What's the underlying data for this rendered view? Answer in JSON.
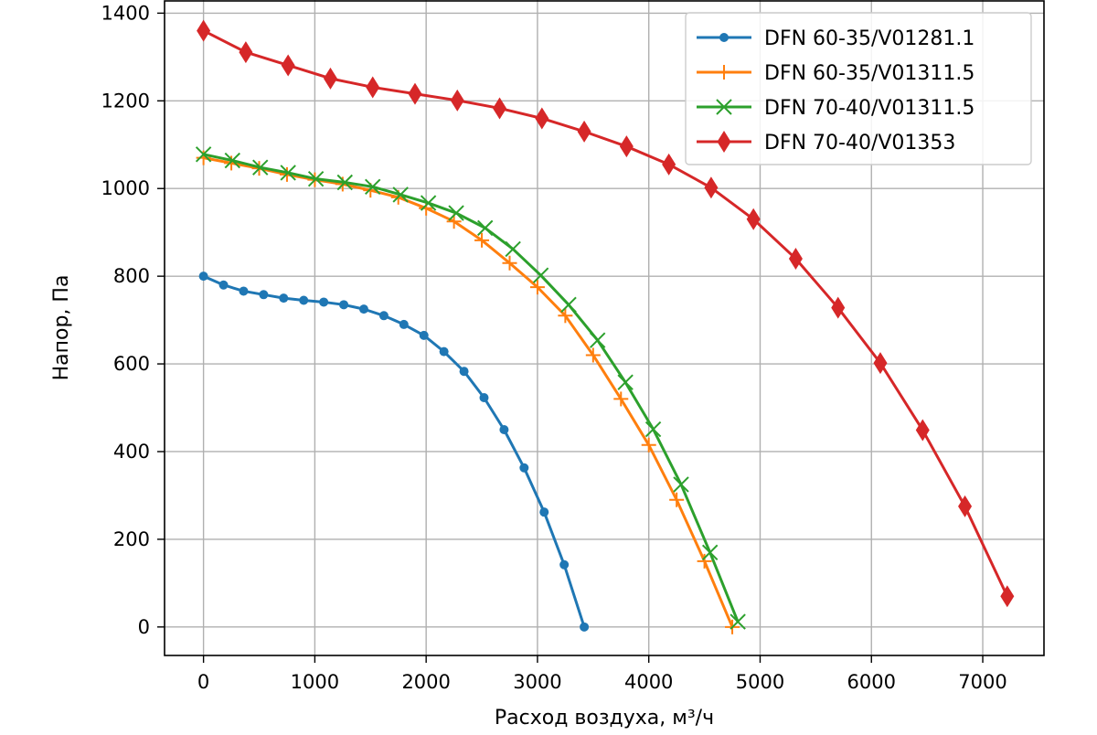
{
  "chart_data": {
    "type": "line",
    "title": "",
    "xlabel": "Расход воздуха, м³/ч",
    "ylabel": "Напор, Па",
    "xlim": [
      -350,
      7550
    ],
    "ylim": [
      -65,
      1430
    ],
    "xticks": [
      0,
      1000,
      2000,
      3000,
      4000,
      5000,
      6000,
      7000
    ],
    "yticks": [
      0,
      200,
      400,
      600,
      800,
      1000,
      1200,
      1400
    ],
    "grid": true,
    "legend_position": "top-right",
    "series": [
      {
        "name": "DFN 60-35/V01281.1",
        "color": "#1f77b4",
        "marker": "circle",
        "x": [
          0,
          180,
          360,
          540,
          720,
          900,
          1080,
          1260,
          1440,
          1620,
          1800,
          1980,
          2160,
          2340,
          2520,
          2700,
          2880,
          3060,
          3240,
          3420
        ],
        "y": [
          800,
          780,
          766,
          758,
          750,
          745,
          741,
          735,
          725,
          710,
          690,
          665,
          628,
          583,
          523,
          450,
          363,
          262,
          142,
          0
        ]
      },
      {
        "name": "DFN 60-35/V01311.5",
        "color": "#ff7f0e",
        "marker": "plus",
        "x": [
          0,
          250,
          500,
          750,
          1000,
          1250,
          1500,
          1750,
          2000,
          2250,
          2500,
          2750,
          3000,
          3250,
          3500,
          3750,
          4000,
          4250,
          4500,
          4750
        ],
        "y": [
          1070,
          1058,
          1046,
          1032,
          1020,
          1010,
          996,
          980,
          955,
          925,
          882,
          830,
          775,
          710,
          620,
          520,
          415,
          290,
          150,
          0
        ]
      },
      {
        "name": "DFN 70-40/V01311.5",
        "color": "#2ca02c",
        "marker": "x",
        "x": [
          0,
          260,
          510,
          760,
          1010,
          1270,
          1520,
          1770,
          2020,
          2270,
          2530,
          2780,
          3030,
          3280,
          3540,
          3790,
          4040,
          4290,
          4550,
          4800
        ],
        "y": [
          1078,
          1064,
          1048,
          1036,
          1022,
          1014,
          1004,
          986,
          967,
          944,
          910,
          862,
          802,
          735,
          654,
          558,
          451,
          325,
          170,
          12
        ]
      },
      {
        "name": "DFN 70-40/V01353",
        "color": "#d62728",
        "marker": "diamond",
        "x": [
          0,
          380,
          760,
          1140,
          1520,
          1900,
          2280,
          2660,
          3040,
          3420,
          3800,
          4180,
          4560,
          4940,
          5320,
          5700,
          6080,
          6460,
          6840,
          7220
        ],
        "y": [
          1360,
          1311,
          1281,
          1251,
          1231,
          1216,
          1201,
          1183,
          1160,
          1130,
          1096,
          1055,
          1002,
          930,
          840,
          728,
          602,
          449,
          275,
          70
        ]
      }
    ]
  }
}
